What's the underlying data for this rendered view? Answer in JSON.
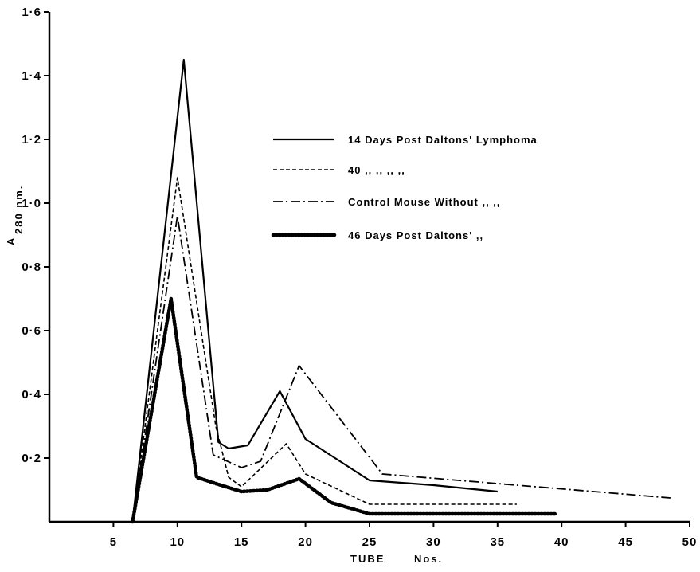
{
  "chart_data": {
    "type": "line",
    "title": "",
    "xlabel_main": "TUBE",
    "xlabel_suffix": "Nos.",
    "ylabel_main": "A",
    "ylabel_sub": "280 nm.",
    "xlim": [
      0,
      50
    ],
    "ylim": [
      0,
      1.6
    ],
    "x_ticks": [
      5,
      10,
      15,
      20,
      25,
      30,
      35,
      40,
      45,
      50
    ],
    "x_tick_labels": [
      "5",
      "10",
      "15",
      "20",
      "25",
      "30",
      "35",
      "40",
      "45",
      "50"
    ],
    "y_ticks": [
      0.2,
      0.4,
      0.6,
      0.8,
      1.0,
      1.2,
      1.4,
      1.6
    ],
    "y_tick_labels": [
      "0·2",
      "0·4",
      "0·6",
      "0·8",
      "1·0",
      "1·2",
      "1·4",
      "1·6"
    ],
    "grid": false,
    "legend_placement": "upper-right",
    "series": [
      {
        "name": "14 Days Post Daltons' Lymphoma",
        "legend_label": "14   Days   Post    Daltons'  Lymphoma",
        "style": "solid",
        "x": [
          6.5,
          10.5,
          13.2,
          14,
          15.5,
          18,
          20,
          25,
          30,
          35
        ],
        "y": [
          0,
          1.45,
          0.25,
          0.23,
          0.24,
          0.41,
          0.26,
          0.13,
          0.115,
          0.095
        ]
      },
      {
        "name": "40 Days Post Daltons' Lymphoma",
        "legend_label": "40    ,,       ,,          ,,              ,,",
        "style": "dashed",
        "x": [
          6.5,
          10,
          13,
          14,
          15,
          18.5,
          20,
          25,
          30,
          36.5
        ],
        "y": [
          0,
          1.08,
          0.3,
          0.14,
          0.11,
          0.245,
          0.15,
          0.055,
          0.055,
          0.055
        ]
      },
      {
        "name": "Control Mouse Without Daltons' Lymphoma",
        "legend_label": "Control  Mouse  Without  ,,          ,,",
        "style": "dashdot",
        "x": [
          6.5,
          10,
          12.8,
          15,
          16.5,
          19.5,
          26,
          35,
          48.5
        ],
        "y": [
          0,
          0.96,
          0.21,
          0.17,
          0.19,
          0.49,
          0.15,
          0.12,
          0.075
        ]
      },
      {
        "name": "46 Days Post Daltons' Lymphoma",
        "legend_label": "46  Days   Post    Daltons'        ,,",
        "style": "beaded",
        "x": [
          6.5,
          9.5,
          11.5,
          13,
          15,
          17,
          19.5,
          22,
          25,
          30,
          39.5
        ],
        "y": [
          0,
          0.7,
          0.14,
          0.12,
          0.095,
          0.1,
          0.135,
          0.06,
          0.025,
          0.025,
          0.025
        ]
      }
    ]
  }
}
